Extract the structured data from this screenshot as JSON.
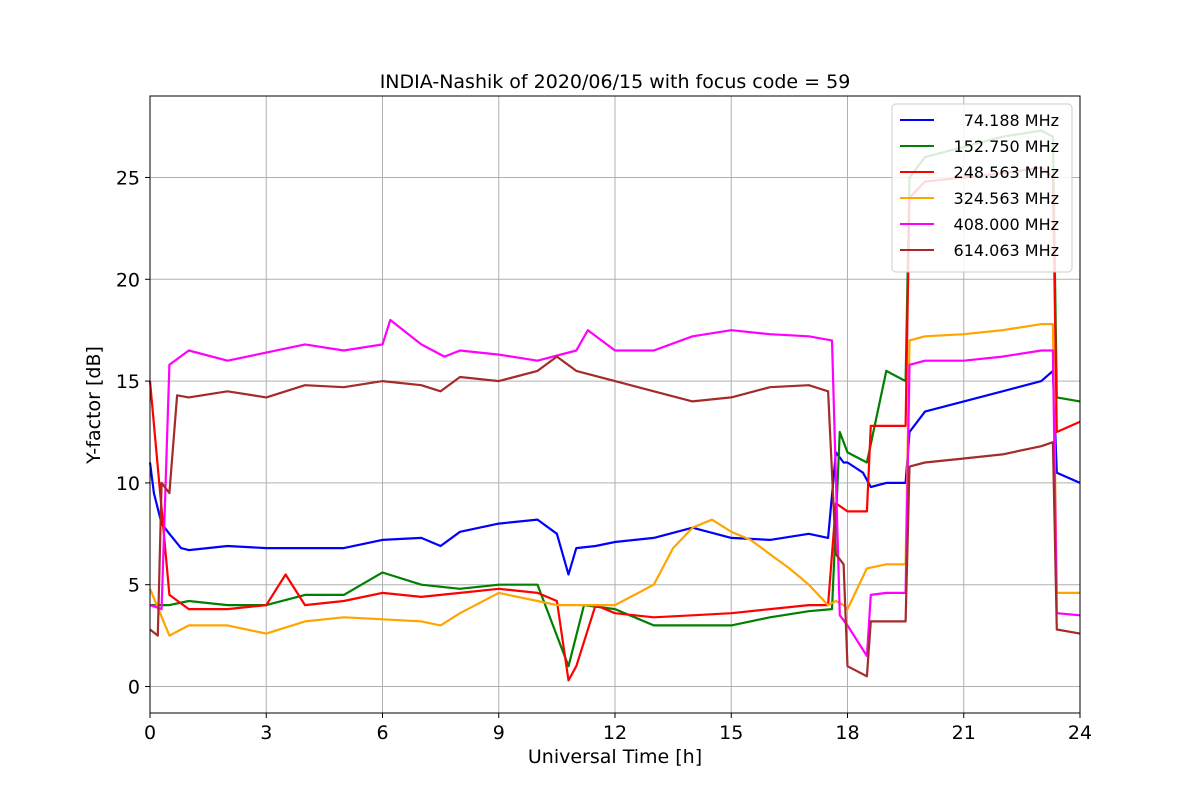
{
  "chart_data": {
    "type": "line",
    "title": "INDIA-Nashik of 2020/06/15 with focus code = 59",
    "xlabel": "Universal Time [h]",
    "ylabel": "Y-factor [dB]",
    "xlim": [
      0,
      24
    ],
    "ylim": [
      -1.3,
      29
    ],
    "xticks": [
      0,
      3,
      6,
      9,
      12,
      15,
      18,
      21,
      24
    ],
    "yticks": [
      0,
      5,
      10,
      15,
      20,
      25
    ],
    "grid": true,
    "legend_position": "top-right",
    "series": [
      {
        "name": "74.188 MHz",
        "color": "#0000ff",
        "x": [
          0,
          0.1,
          0.3,
          0.5,
          0.8,
          1.0,
          2.0,
          3.0,
          4.0,
          5.0,
          6.0,
          7.0,
          7.5,
          8.0,
          9.0,
          10.0,
          10.5,
          10.8,
          11.0,
          11.5,
          12.0,
          13.0,
          14.0,
          15.0,
          16.0,
          17.0,
          17.5,
          17.7,
          17.9,
          18.0,
          18.4,
          18.6,
          19.0,
          19.5,
          19.6,
          20.0,
          21.0,
          22.0,
          23.0,
          23.3,
          23.4,
          24.0
        ],
        "y": [
          11.0,
          9.5,
          8.0,
          7.5,
          6.8,
          6.7,
          6.9,
          6.8,
          6.8,
          6.8,
          7.2,
          7.3,
          6.9,
          7.6,
          8.0,
          8.2,
          7.5,
          5.5,
          6.8,
          6.9,
          7.1,
          7.3,
          7.8,
          7.3,
          7.2,
          7.5,
          7.3,
          11.5,
          11.0,
          11.0,
          10.5,
          9.8,
          10.0,
          10.0,
          12.5,
          13.5,
          14.0,
          14.5,
          15.0,
          15.5,
          10.5,
          10.0
        ]
      },
      {
        "name": "152.750 MHz",
        "color": "#008000",
        "x": [
          0,
          0.5,
          1.0,
          2.0,
          3.0,
          4.0,
          5.0,
          6.0,
          7.0,
          8.0,
          9.0,
          10.0,
          10.8,
          11.2,
          12.0,
          13.0,
          14.0,
          15.0,
          16.0,
          17.0,
          17.6,
          17.8,
          18.0,
          18.5,
          19.0,
          19.5,
          19.6,
          20.0,
          21.0,
          22.0,
          23.0,
          23.3,
          23.4,
          24.0
        ],
        "y": [
          4.0,
          4.0,
          4.2,
          4.0,
          4.0,
          4.5,
          4.5,
          5.6,
          5.0,
          4.8,
          5.0,
          5.0,
          1.0,
          4.0,
          3.8,
          3.0,
          3.0,
          3.0,
          3.4,
          3.7,
          3.8,
          12.5,
          11.5,
          11.0,
          15.5,
          15.0,
          25.0,
          26.0,
          26.5,
          27.0,
          27.3,
          27.0,
          14.2,
          14.0
        ]
      },
      {
        "name": "248.563 MHz",
        "color": "#ff0000",
        "x": [
          0,
          0.5,
          1.0,
          2.0,
          3.0,
          3.5,
          4.0,
          5.0,
          6.0,
          7.0,
          8.0,
          9.0,
          10.0,
          10.5,
          10.8,
          11.0,
          11.5,
          12.0,
          13.0,
          14.0,
          15.0,
          16.0,
          17.0,
          17.5,
          17.7,
          18.0,
          18.5,
          18.6,
          19.0,
          19.5,
          19.6,
          20.0,
          21.0,
          22.0,
          23.0,
          23.3,
          23.4,
          24.0
        ],
        "y": [
          15.0,
          4.5,
          3.8,
          3.8,
          4.0,
          5.5,
          4.0,
          4.2,
          4.6,
          4.4,
          4.6,
          4.8,
          4.6,
          4.2,
          0.3,
          1.0,
          4.0,
          3.6,
          3.4,
          3.5,
          3.6,
          3.8,
          4.0,
          4.0,
          9.0,
          8.6,
          8.6,
          12.8,
          12.8,
          12.8,
          24.0,
          24.8,
          25.0,
          25.2,
          25.5,
          25.0,
          12.5,
          13.0
        ]
      },
      {
        "name": "324.563 MHz",
        "color": "#ffa500",
        "x": [
          0,
          0.5,
          1.0,
          2.0,
          3.0,
          4.0,
          5.0,
          6.0,
          7.0,
          7.5,
          8.0,
          9.0,
          10.0,
          10.5,
          11.0,
          12.0,
          12.5,
          13.0,
          13.5,
          14.0,
          14.5,
          15.0,
          15.5,
          16.0,
          16.5,
          17.0,
          17.5,
          17.7,
          17.9,
          18.0,
          18.5,
          19.0,
          19.5,
          19.6,
          20.0,
          21.0,
          22.0,
          23.0,
          23.3,
          23.4,
          24.0
        ],
        "y": [
          4.8,
          2.5,
          3.0,
          3.0,
          2.6,
          3.2,
          3.4,
          3.3,
          3.2,
          3.0,
          3.6,
          4.6,
          4.2,
          4.0,
          4.0,
          4.0,
          4.5,
          5.0,
          6.8,
          7.8,
          8.2,
          7.6,
          7.2,
          6.5,
          5.8,
          5.0,
          4.0,
          4.2,
          4.0,
          3.8,
          5.8,
          6.0,
          6.0,
          17.0,
          17.2,
          17.3,
          17.5,
          17.8,
          17.8,
          4.6,
          4.6
        ]
      },
      {
        "name": "408.000 MHz",
        "color": "#ff00ff",
        "x": [
          0,
          0.3,
          0.5,
          1.0,
          2.0,
          3.0,
          4.0,
          5.0,
          6.0,
          6.2,
          7.0,
          7.6,
          8.0,
          9.0,
          10.0,
          11.0,
          11.3,
          12.0,
          13.0,
          14.0,
          15.0,
          16.0,
          17.0,
          17.6,
          17.8,
          18.0,
          18.5,
          18.6,
          19.0,
          19.5,
          19.6,
          20.0,
          21.0,
          22.0,
          23.0,
          23.3,
          23.4,
          24.0
        ],
        "y": [
          4.0,
          3.8,
          15.8,
          16.5,
          16.0,
          16.4,
          16.8,
          16.5,
          16.8,
          18.0,
          16.8,
          16.2,
          16.5,
          16.3,
          16.0,
          16.5,
          17.5,
          16.5,
          16.5,
          17.2,
          17.5,
          17.3,
          17.2,
          17.0,
          3.5,
          3.0,
          1.5,
          4.5,
          4.6,
          4.6,
          15.8,
          16.0,
          16.0,
          16.2,
          16.5,
          16.5,
          3.6,
          3.5
        ]
      },
      {
        "name": "614.063 MHz",
        "color": "#a52a2a",
        "x": [
          0,
          0.2,
          0.3,
          0.5,
          0.7,
          1.0,
          2.0,
          3.0,
          4.0,
          5.0,
          6.0,
          7.0,
          7.5,
          8.0,
          9.0,
          10.0,
          10.5,
          11.0,
          12.0,
          13.0,
          14.0,
          15.0,
          16.0,
          17.0,
          17.5,
          17.7,
          17.9,
          18.0,
          18.5,
          18.6,
          19.0,
          19.5,
          19.6,
          20.0,
          21.0,
          22.0,
          23.0,
          23.3,
          23.4,
          24.0
        ],
        "y": [
          2.8,
          2.5,
          10.0,
          9.5,
          14.3,
          14.2,
          14.5,
          14.2,
          14.8,
          14.7,
          15.0,
          14.8,
          14.5,
          15.2,
          15.0,
          15.5,
          16.2,
          15.5,
          15.0,
          14.5,
          14.0,
          14.2,
          14.7,
          14.8,
          14.5,
          6.5,
          6.0,
          1.0,
          0.5,
          3.2,
          3.2,
          3.2,
          10.8,
          11.0,
          11.2,
          11.4,
          11.8,
          12.0,
          2.8,
          2.6
        ]
      }
    ]
  }
}
